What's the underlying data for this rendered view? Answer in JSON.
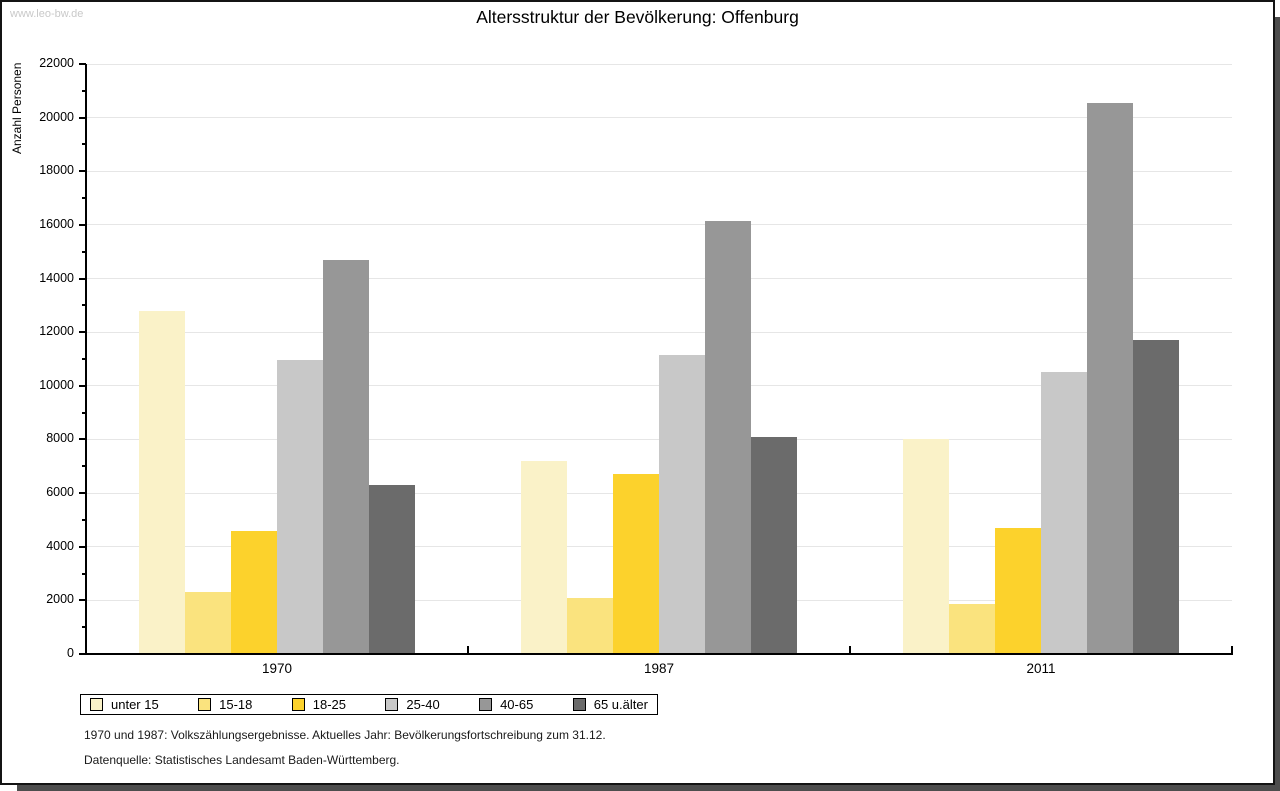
{
  "page": {
    "watermark": "www.leo-bw.de",
    "title": "Altersstruktur der Bevölkerung: Offenburg",
    "footnotes": {
      "line1": "1970 und 1987: Volkszählungsergebnisse. Aktuelles Jahr: Bevölkerungsfortschreibung zum 31.12.",
      "line2": "Datenquelle: Statistisches Landesamt Baden-Württemberg."
    }
  },
  "colors": {
    "gridline": "#e6e6e6",
    "axis": "#000000",
    "frame_shadow": "#4d4d4d",
    "watermark": "#c9c9c9"
  },
  "chart_data": {
    "type": "bar",
    "title": "Altersstruktur der Bevölkerung: Offenburg",
    "xlabel": "",
    "ylabel": "Anzahl Personen",
    "categories": [
      "1970",
      "1987",
      "2011"
    ],
    "series": [
      {
        "name": "unter 15",
        "color": "#faf2c8",
        "values": [
          12800,
          7200,
          8000
        ]
      },
      {
        "name": "15-18",
        "color": "#fae37e",
        "values": [
          2300,
          2100,
          1850
        ]
      },
      {
        "name": "18-25",
        "color": "#fcd22c",
        "values": [
          4600,
          6700,
          4700
        ]
      },
      {
        "name": "25-40",
        "color": "#c8c8c8",
        "values": [
          10950,
          11150,
          10500
        ]
      },
      {
        "name": "40-65",
        "color": "#979797",
        "values": [
          14700,
          16150,
          20550
        ]
      },
      {
        "name": "65 u.älter",
        "color": "#6b6b6b",
        "values": [
          6300,
          8100,
          11700
        ]
      }
    ],
    "ylim": [
      0,
      22000
    ],
    "ytick_step": 2000,
    "minor_tick_step": 1000,
    "grid": true,
    "legend_position": "bottom"
  }
}
